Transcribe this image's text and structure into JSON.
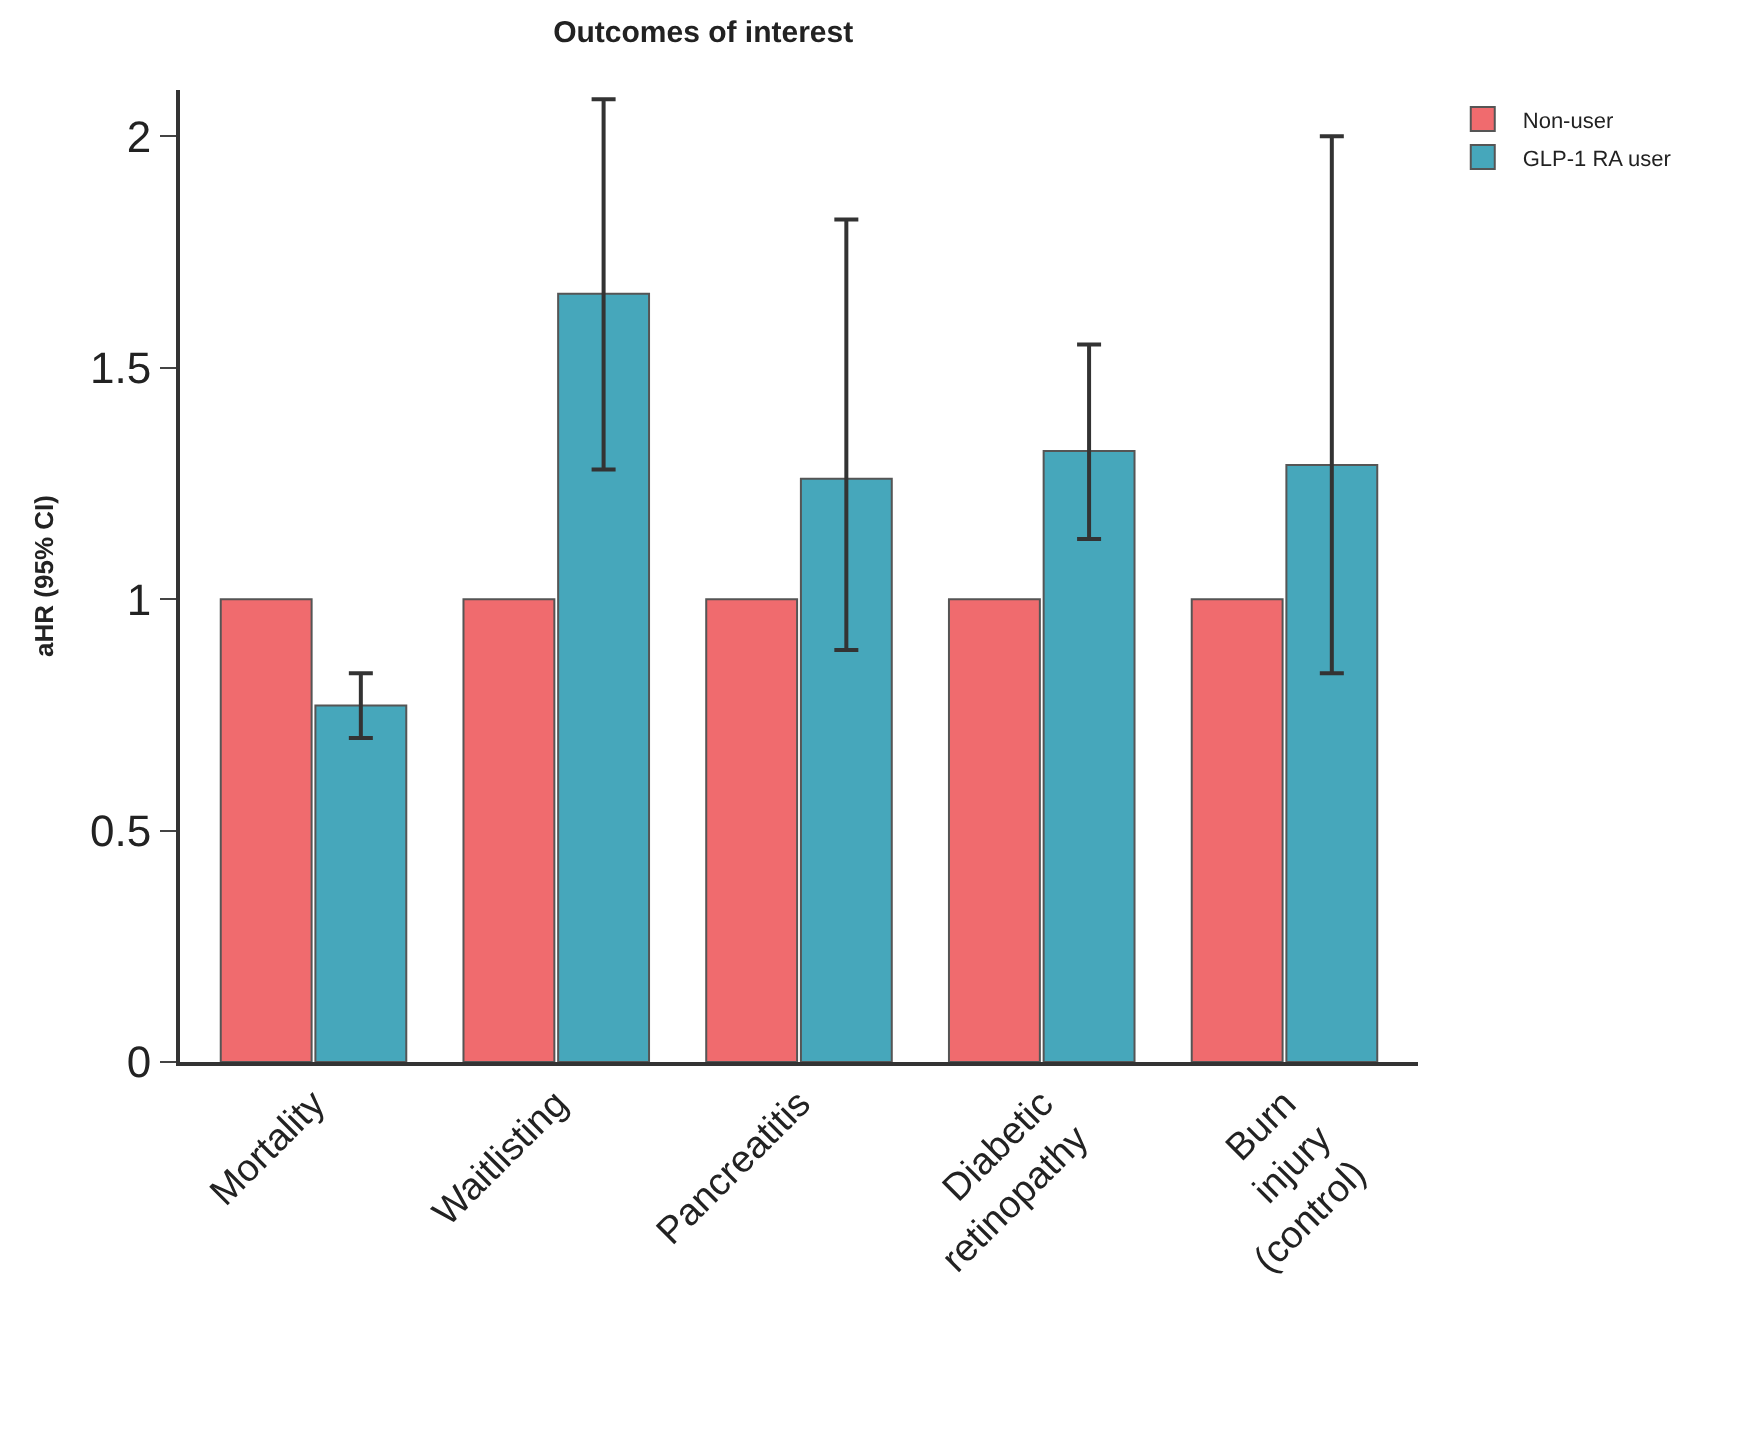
{
  "chart_data": {
    "type": "bar",
    "title": "Outcomes of interest",
    "ylabel": "aHR (95% CI)",
    "categories": [
      "Mortality",
      "Waitlisting",
      "Pancreatitis",
      "Diabetic\nretinopathy",
      "Burn\ninjury\n(control)"
    ],
    "series": [
      {
        "name": "Non-user",
        "color": "#f06b6e",
        "values": [
          1,
          1,
          1,
          1,
          1
        ]
      },
      {
        "name": "GLP-1 RA user",
        "color": "#46a7bb",
        "values": [
          0.77,
          1.66,
          1.26,
          1.32,
          1.29
        ],
        "errors": [
          [
            0.7,
            0.84
          ],
          [
            1.28,
            2.08
          ],
          [
            0.89,
            1.82
          ],
          [
            1.13,
            1.55
          ],
          [
            0.84,
            2.0
          ]
        ]
      }
    ],
    "ylim": [
      0,
      2.1
    ],
    "yticks": [
      0,
      0.5,
      1,
      1.5,
      2
    ],
    "legend": "top right"
  }
}
